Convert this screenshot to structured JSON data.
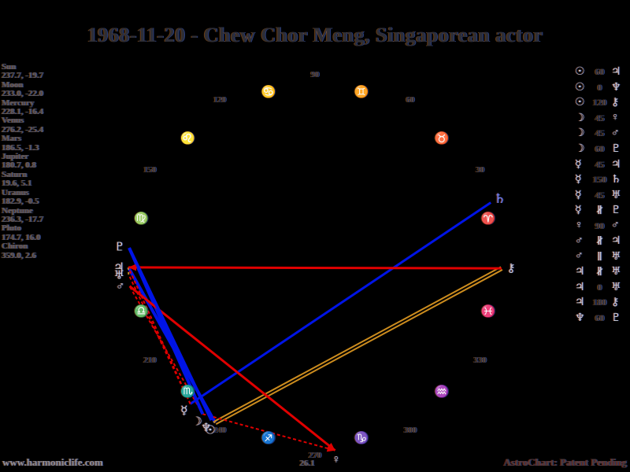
{
  "title": "1968-11-20 - Chew Chor Meng, Singaporean actor",
  "footer": {
    "left": "www.harmoniclife.com",
    "right": "AstroChart: Patent Pending"
  },
  "colors": {
    "red": "#e00000",
    "blue": "#0014e6",
    "orange": "#cc8c1e",
    "saturn_blue": "#6b7cf0",
    "background": "#000000"
  },
  "chart_data": {
    "type": "scatter",
    "title": "1968-11-20 - Chew Chor Meng, Singaporean actor",
    "coordinate_system": "polar natal wheel: ecliptic longitude in degrees (0=right, counterclockwise), declination listed in panel",
    "bodies": [
      {
        "name": "Sun",
        "glyph": "☉",
        "lon": 237.7,
        "decl": -19.7,
        "lon_s": "237.7",
        "decl_s": "-19.7"
      },
      {
        "name": "Moon",
        "glyph": "☽",
        "lon": 233.0,
        "decl": -22.0,
        "lon_s": "233.0",
        "decl_s": "-22.0"
      },
      {
        "name": "Mercury",
        "glyph": "☿",
        "lon": 228.1,
        "decl": -16.4,
        "lon_s": "228.1",
        "decl_s": "-16.4"
      },
      {
        "name": "Venus",
        "glyph": "♀",
        "lon": 276.2,
        "decl": -25.4,
        "lon_s": "276.2",
        "decl_s": "-25.4"
      },
      {
        "name": "Mars",
        "glyph": "♂",
        "lon": 186.5,
        "decl": -1.3,
        "lon_s": "186.5",
        "decl_s": "-1.3"
      },
      {
        "name": "Jupiter",
        "glyph": "♃",
        "lon": 180.7,
        "decl": 0.8,
        "lon_s": "180.7",
        "decl_s": "0.8"
      },
      {
        "name": "Saturn",
        "glyph": "♄",
        "lon": 19.6,
        "decl": 5.1,
        "lon_s": "19.6",
        "decl_s": "5.1"
      },
      {
        "name": "Uranus",
        "glyph": "♅",
        "lon": 182.9,
        "decl": -0.5,
        "lon_s": "182.9",
        "decl_s": "-0.5"
      },
      {
        "name": "Neptune",
        "glyph": "♆",
        "lon": 236.3,
        "decl": -17.7,
        "lon_s": "236.3",
        "decl_s": "-17.7"
      },
      {
        "name": "Pluto",
        "glyph": "♇",
        "lon": 174.7,
        "decl": 16.0,
        "lon_s": "174.7",
        "decl_s": "16.0"
      },
      {
        "name": "Chiron",
        "glyph": "⚷",
        "lon": 359.0,
        "decl": 2.6,
        "lon_s": "359.0",
        "decl_s": "2.6"
      }
    ],
    "aspects": [
      {
        "p1": "Sun",
        "g1": "☉",
        "value": "60",
        "p2": "Jupiter",
        "g2": "♃"
      },
      {
        "p1": "Sun",
        "g1": "☉",
        "value": "0",
        "p2": "Neptune",
        "g2": "♆"
      },
      {
        "p1": "Sun",
        "g1": "☉",
        "value": "120",
        "p2": "Chiron",
        "g2": "⚷"
      },
      {
        "p1": "Moon",
        "g1": "☽",
        "value": "45",
        "p2": "Venus",
        "g2": "♀",
        "arrow": "p2"
      },
      {
        "p1": "Moon",
        "g1": "☽",
        "value": "45",
        "p2": "Mars",
        "g2": "♂"
      },
      {
        "p1": "Moon",
        "g1": "☽",
        "value": "60",
        "p2": "Pluto",
        "g2": "♇"
      },
      {
        "p1": "Mercury",
        "g1": "☿",
        "value": "45",
        "p2": "Jupiter",
        "g2": "♃"
      },
      {
        "p1": "Mercury",
        "g1": "☿",
        "value": "150",
        "p2": "Saturn",
        "g2": "♄"
      },
      {
        "p1": "Mercury",
        "g1": "☿",
        "value": "45",
        "p2": "Uranus",
        "g2": "♅"
      },
      {
        "p1": "Mercury",
        "g1": "☿",
        "value": "∦",
        "p2": "Pluto",
        "g2": "♇"
      },
      {
        "p1": "Venus",
        "g1": "♀",
        "value": "90",
        "p2": "Mars",
        "g2": "♂",
        "arrow": "p1"
      },
      {
        "p1": "Mars",
        "g1": "♂",
        "value": "∦",
        "p2": "Jupiter",
        "g2": "♃"
      },
      {
        "p1": "Mars",
        "g1": "♂",
        "value": "∥",
        "p2": "Uranus",
        "g2": "♅"
      },
      {
        "p1": "Jupiter",
        "g1": "♃",
        "value": "∦",
        "p2": "Uranus",
        "g2": "♅"
      },
      {
        "p1": "Jupiter",
        "g1": "♃",
        "value": "0",
        "p2": "Uranus",
        "g2": "♅"
      },
      {
        "p1": "Jupiter",
        "g1": "♃",
        "value": "180",
        "p2": "Chiron",
        "g2": "⚷",
        "arrow": "p1"
      },
      {
        "p1": "Neptune",
        "g1": "♆",
        "value": "60",
        "p2": "Pluto",
        "g2": "♇"
      }
    ],
    "wheel": {
      "degree_labels": [
        "30",
        "60",
        "90",
        "120",
        "150",
        "210",
        "240",
        "270",
        "300",
        "330"
      ],
      "signs": [
        {
          "name": "Aries",
          "glyph": "♈",
          "mid_lon": 15
        },
        {
          "name": "Taurus",
          "glyph": "♉",
          "mid_lon": 45
        },
        {
          "name": "Gemini",
          "glyph": "♊",
          "mid_lon": 75
        },
        {
          "name": "Cancer",
          "glyph": "♋",
          "mid_lon": 105
        },
        {
          "name": "Leo",
          "glyph": "♌",
          "mid_lon": 135
        },
        {
          "name": "Virgo",
          "glyph": "♍",
          "mid_lon": 165
        },
        {
          "name": "Libra",
          "glyph": "♎",
          "mid_lon": 195
        },
        {
          "name": "Scorpio",
          "glyph": "♏",
          "mid_lon": 225
        },
        {
          "name": "Sagittarius",
          "glyph": "♐",
          "mid_lon": 255
        },
        {
          "name": "Capricorn",
          "glyph": "♑",
          "mid_lon": 285
        },
        {
          "name": "Aquarius",
          "glyph": "♒",
          "mid_lon": 315
        },
        {
          "name": "Pisces",
          "glyph": "♓",
          "mid_lon": 345
        }
      ],
      "extra_label": "26.1",
      "legend": "aspect line colors: red = 45/90/180, blue = 60/150, orange = 0/120"
    }
  }
}
